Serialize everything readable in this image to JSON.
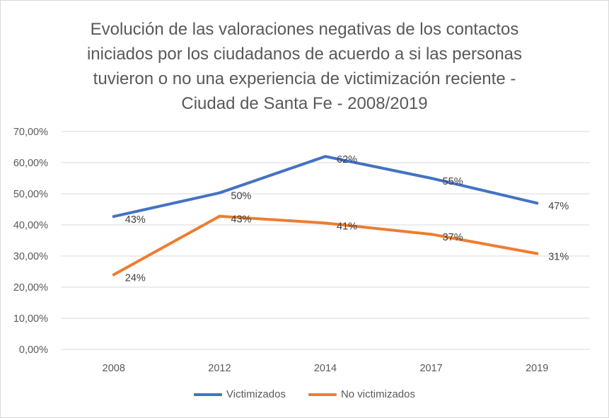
{
  "chart_data": {
    "type": "line",
    "title_lines": [
      "Evolución de las valoraciones negativas de los contactos",
      "iniciados por los ciudadanos de acuerdo a si las personas",
      "tuvieron o no una experiencia de victimización reciente -",
      "Ciudad de Santa Fe - 2008/2019"
    ],
    "categories": [
      "2008",
      "2012",
      "2014",
      "2017",
      "2019"
    ],
    "y_ticks": [
      "0,00%",
      "10,00%",
      "20,00%",
      "30,00%",
      "40,00%",
      "50,00%",
      "60,00%",
      "70,00%"
    ],
    "ylim": [
      0,
      70
    ],
    "grid": true,
    "legend_position": "bottom",
    "series": [
      {
        "name": "Victimizados",
        "color": "#4472c4",
        "values": [
          42.7,
          50.3,
          62.0,
          55.0,
          47.0
        ],
        "labels": [
          "43%",
          "50%",
          "62%",
          "55%",
          "47%"
        ]
      },
      {
        "name": "No victimizados",
        "color": "#ed7d31",
        "values": [
          24.0,
          42.8,
          40.6,
          37.0,
          30.8
        ],
        "labels": [
          "24%",
          "43%",
          "41%",
          "37%",
          "31%"
        ]
      }
    ]
  }
}
